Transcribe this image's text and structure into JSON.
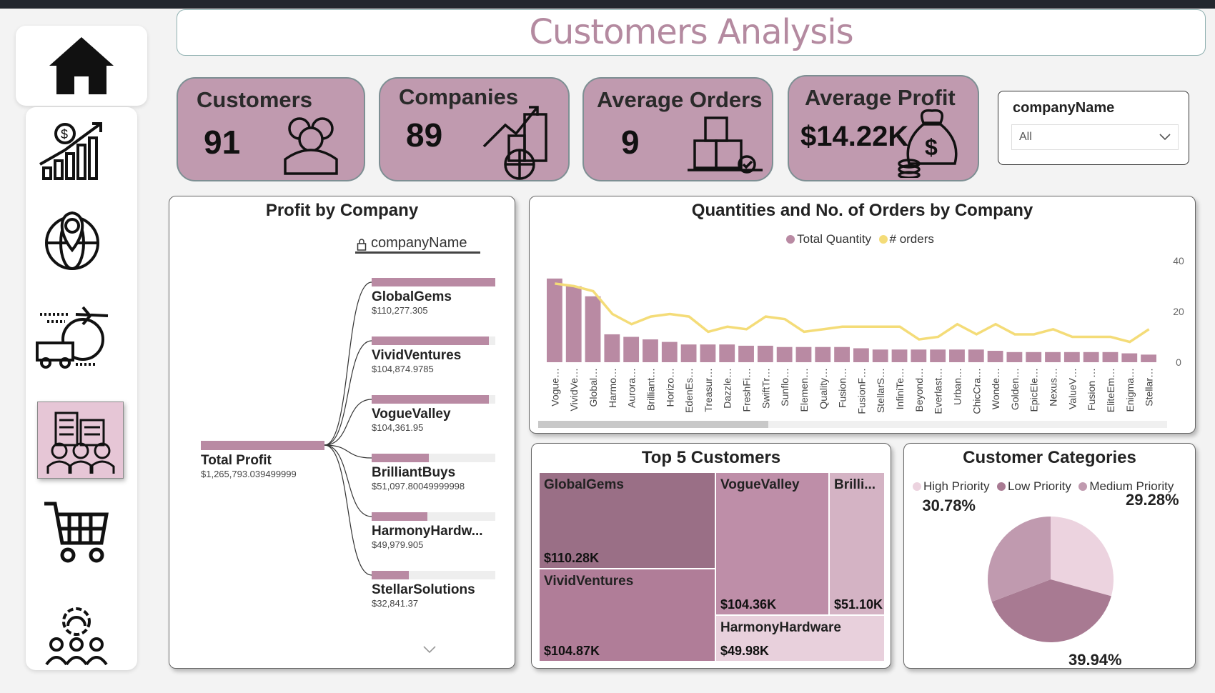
{
  "title": "Customers Analysis",
  "sidebar": {
    "items": [
      {
        "icon": "home-icon"
      },
      {
        "icon": "sales-growth-icon"
      },
      {
        "icon": "globe-location-icon"
      },
      {
        "icon": "shipping-icon"
      },
      {
        "icon": "customers-building-icon",
        "selected": true
      },
      {
        "icon": "cart-icon"
      },
      {
        "icon": "team-settings-icon"
      }
    ]
  },
  "kpis": [
    {
      "label": "Customers",
      "value": "91",
      "icon": "people-icon"
    },
    {
      "label": "Companies",
      "value": "89",
      "icon": "city-growth-icon"
    },
    {
      "label": "Average Orders",
      "value": "9",
      "icon": "boxes-icon"
    },
    {
      "label": "Average Profit",
      "value": "$14.22K",
      "icon": "money-bag-icon"
    }
  ],
  "slicer": {
    "label": "companyName",
    "value": "All"
  },
  "profit_tree": {
    "title": "Profit by Company",
    "level_label": "companyName",
    "root": {
      "name": "Total Profit",
      "value": "$1,265,793.039499999"
    },
    "children": [
      {
        "name": "GlobalGems",
        "value": "$110,277.305",
        "fraction": 1.0
      },
      {
        "name": "VividVentures",
        "value": "$104,874.9785",
        "fraction": 0.95
      },
      {
        "name": "VogueValley",
        "value": "$104,361.95",
        "fraction": 0.946
      },
      {
        "name": "BrilliantBuys",
        "value": "$51,097.80049999998",
        "fraction": 0.463
      },
      {
        "name": "HarmonyHardw...",
        "value": "$49,979.905",
        "fraction": 0.453
      },
      {
        "name": "StellarSolutions",
        "value": "$32,841.37",
        "fraction": 0.298
      }
    ]
  },
  "chart_data": [
    {
      "type": "bar+line",
      "title": "Quantities and No. of Orders by Company",
      "legend": "top-center",
      "categories": [
        "Vogue…",
        "VividVe…",
        "Global…",
        "Harmo…",
        "Aurora…",
        "Brilliant…",
        "Horizo…",
        "EdenEs…",
        "Treasur…",
        "Dazzle…",
        "FreshFi…",
        "SwiftTr…",
        "Sunflo…",
        "Elemen…",
        "Quality…",
        "Fusion…",
        "FusionF…",
        "StellarS…",
        "InfiniTe…",
        "Beyond…",
        "Everlast…",
        "Urban…",
        "ChicCra…",
        "Wonde…",
        "Golden…",
        "EpicEle…",
        "Nexus…",
        "ValueV…",
        "Fusion …",
        "EliteEm…",
        "Enigma…",
        "Stellar…"
      ],
      "ylim": [
        0,
        40
      ],
      "yticks": [
        "0",
        "20",
        "40"
      ],
      "series": [
        {
          "name": "Total Quantity",
          "type": "bar",
          "color": "#b98aa3",
          "values": [
            33,
            30,
            26,
            11,
            10,
            9,
            8,
            7,
            7,
            7,
            6.5,
            6.5,
            6,
            6,
            6,
            6,
            5.5,
            5,
            5,
            5,
            5,
            5,
            5,
            4.5,
            4,
            4,
            4,
            4,
            4,
            4,
            3.5,
            3
          ]
        },
        {
          "name": "# orders",
          "type": "line",
          "color": "#f4dc78",
          "values": [
            31,
            30,
            28,
            19,
            15,
            18,
            19,
            18,
            12,
            14,
            13,
            18,
            17,
            12,
            13,
            14,
            14,
            14,
            14,
            9,
            10,
            15,
            11,
            15,
            11,
            11,
            13,
            10,
            10,
            10,
            8,
            13
          ]
        }
      ]
    },
    {
      "type": "treemap",
      "title": "Top 5 Customers",
      "items": [
        {
          "name": "GlobalGems",
          "value": "$110.28K",
          "color": "#9a6f86"
        },
        {
          "name": "VividVentures",
          "value": "$104.87K",
          "color": "#b07d98"
        },
        {
          "name": "VogueValley",
          "value": "$104.36K",
          "color": "#be8ea8"
        },
        {
          "name": "Brilli...",
          "value": "$51.10K",
          "color": "#d4b3c4"
        },
        {
          "name": "HarmonyHardware",
          "value": "$49.98K",
          "color": "#e8d0dc"
        }
      ]
    },
    {
      "type": "pie",
      "title": "Customer Categories",
      "legend": "top",
      "slices": [
        {
          "name": "High Priority",
          "value": 29.28,
          "label": "29.28%",
          "color": "#ecd3df"
        },
        {
          "name": "Low Priority",
          "value": 39.94,
          "label": "39.94%",
          "color": "#a87a92"
        },
        {
          "name": "Medium Priority",
          "value": 30.78,
          "label": "30.78%",
          "color": "#c09aaf"
        }
      ]
    }
  ]
}
